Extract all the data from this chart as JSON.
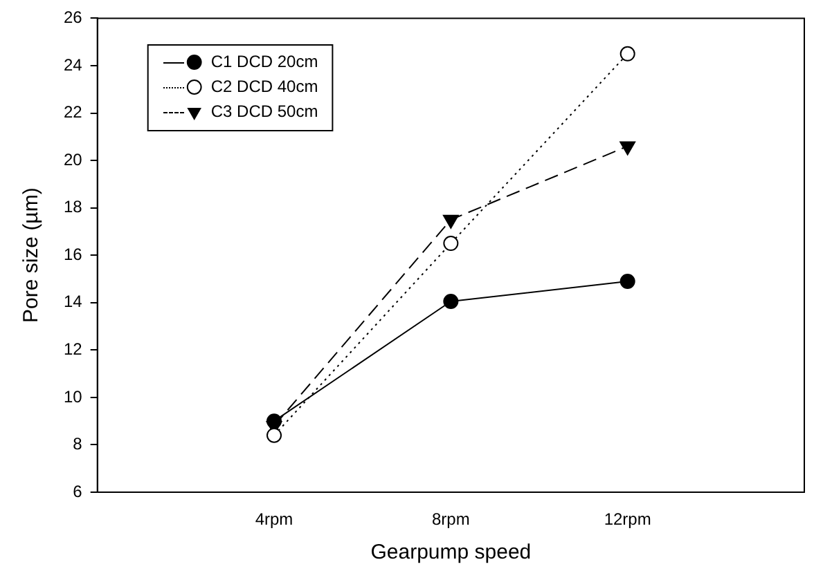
{
  "chart_data": {
    "type": "line",
    "xlabel": "Gearpump speed",
    "ylabel": "Pore size (µm)",
    "categories": [
      "4rpm",
      "8rpm",
      "12rpm"
    ],
    "series": [
      {
        "name": "C1 DCD 20cm",
        "color": "#000000",
        "values": [
          9.0,
          14.05,
          14.9
        ],
        "marker": "circle",
        "line_style": "solid"
      },
      {
        "name": "C2 DCD 40cm",
        "color": "#000000",
        "values": [
          8.4,
          16.5,
          24.5
        ],
        "marker": "circle-open",
        "line_style": "dotted"
      },
      {
        "name": "C3 DCD 50cm",
        "color": "#000000",
        "values": [
          8.8,
          17.5,
          20.6
        ],
        "marker": "triangle-down",
        "line_style": "dashed"
      }
    ],
    "ylim": [
      6,
      26
    ],
    "yticks": [
      6,
      8,
      10,
      12,
      14,
      16,
      18,
      20,
      22,
      24,
      26
    ],
    "grid": false,
    "legend": "top left"
  }
}
